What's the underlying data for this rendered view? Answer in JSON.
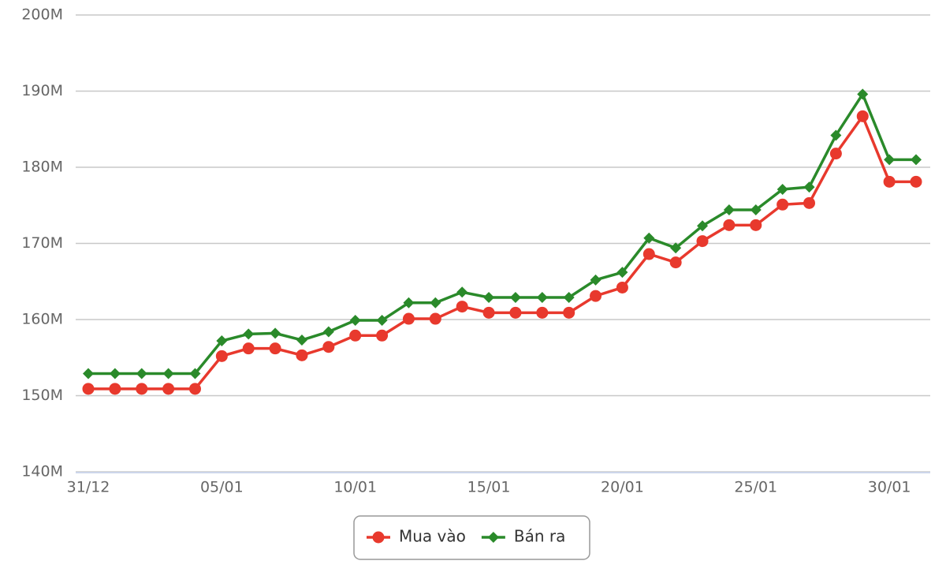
{
  "chart_data": {
    "type": "line",
    "categories": [
      "31/12",
      null,
      null,
      null,
      null,
      "05/01",
      null,
      null,
      null,
      null,
      "10/01",
      null,
      null,
      null,
      null,
      "15/01",
      null,
      null,
      null,
      null,
      "20/01",
      null,
      null,
      null,
      null,
      "25/01",
      null,
      null,
      null,
      null,
      "30/01",
      null
    ],
    "series": [
      {
        "name": "Mua vào",
        "color": "#e8392d",
        "marker": "circle",
        "values": [
          150900000,
          150900000,
          150900000,
          150900000,
          150900000,
          155200000,
          156200000,
          156200000,
          155300000,
          156400000,
          157900000,
          157900000,
          160100000,
          160100000,
          161700000,
          160900000,
          160900000,
          160900000,
          160900000,
          163100000,
          164200000,
          168600000,
          167500000,
          170300000,
          172400000,
          172400000,
          175100000,
          175300000,
          181800000,
          186700000,
          178100000,
          178100000
        ]
      },
      {
        "name": "Bán ra",
        "color": "#2a8a2a",
        "marker": "diamond",
        "values": [
          152900000,
          152900000,
          152900000,
          152900000,
          152900000,
          157200000,
          158100000,
          158200000,
          157300000,
          158400000,
          159900000,
          159900000,
          162200000,
          162200000,
          163600000,
          162900000,
          162900000,
          162900000,
          162900000,
          165200000,
          166200000,
          170700000,
          169400000,
          172300000,
          174400000,
          174400000,
          177100000,
          177400000,
          184200000,
          189600000,
          181000000,
          181000000
        ]
      }
    ],
    "ylim": [
      140000000,
      200000000
    ],
    "yticks": [
      {
        "value": 140000000,
        "label": "140M"
      },
      {
        "value": 150000000,
        "label": "150M"
      },
      {
        "value": 160000000,
        "label": "160M"
      },
      {
        "value": 170000000,
        "label": "170M"
      },
      {
        "value": 180000000,
        "label": "180M"
      },
      {
        "value": 190000000,
        "label": "190M"
      },
      {
        "value": 200000000,
        "label": "200M"
      }
    ],
    "grid": true,
    "legend": "bottom"
  }
}
